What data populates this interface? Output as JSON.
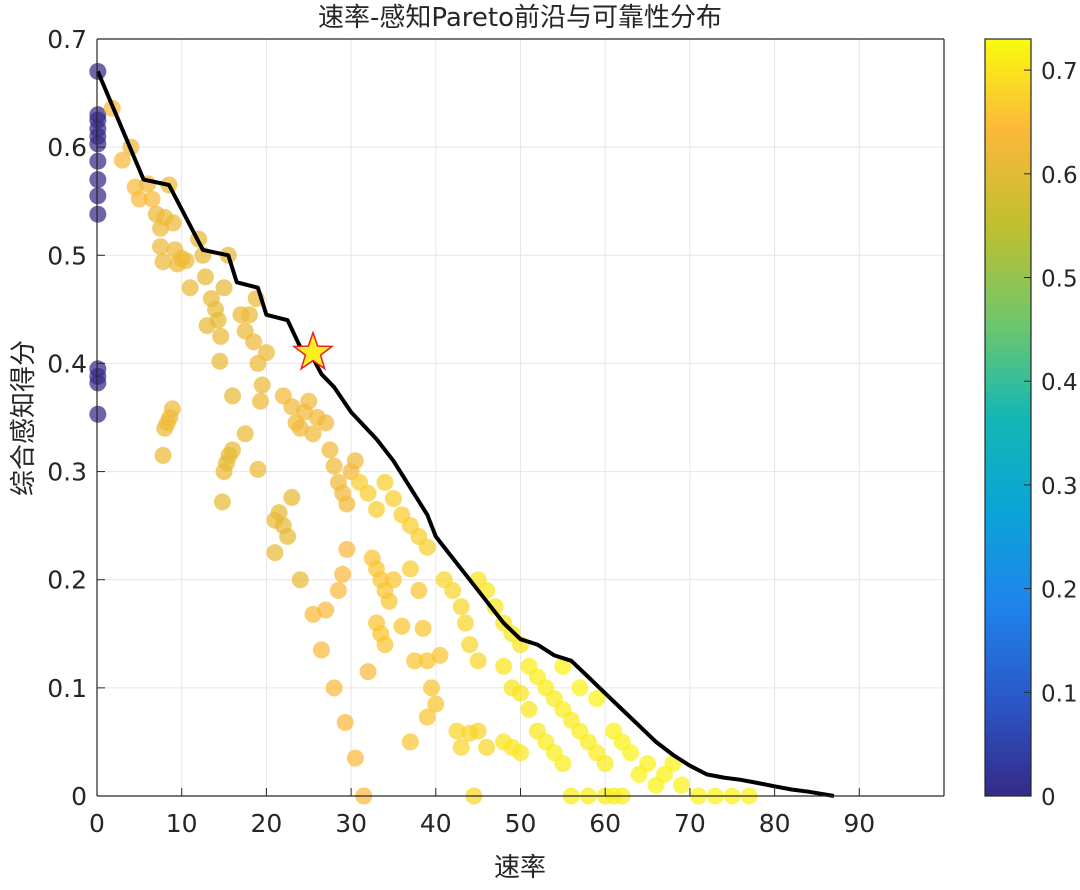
{
  "chart_data": {
    "type": "scatter",
    "title": "速率-感知Pareto前沿与可靠性分布",
    "xlabel": "速率",
    "ylabel": "综合感知得分",
    "xlim": [
      0,
      100
    ],
    "ylim": [
      0,
      0.7
    ],
    "xticks": [
      0,
      10,
      20,
      30,
      40,
      50,
      60,
      70,
      80,
      90
    ],
    "yticks": [
      0,
      0.1,
      0.2,
      0.3,
      0.4,
      0.5,
      0.6,
      0.7
    ],
    "grid": true,
    "colorbar": {
      "min": 0,
      "max": 0.73,
      "ticks": [
        0,
        0.1,
        0.2,
        0.3,
        0.4,
        0.5,
        0.6,
        0.7
      ],
      "colormap": "parula"
    },
    "series": [
      {
        "type": "scatter",
        "color_value_note": "reliability",
        "points": [
          [
            0.1,
            0.67,
            0.0
          ],
          [
            0.1,
            0.63,
            0.0
          ],
          [
            0.1,
            0.625,
            0.0
          ],
          [
            0.1,
            0.617,
            0.0
          ],
          [
            0.1,
            0.61,
            0.0
          ],
          [
            0.1,
            0.603,
            0.0
          ],
          [
            0.1,
            0.587,
            0.0
          ],
          [
            0.1,
            0.57,
            0.0
          ],
          [
            0.1,
            0.555,
            0.0
          ],
          [
            0.1,
            0.538,
            0.0
          ],
          [
            0.1,
            0.395,
            0.0
          ],
          [
            0.1,
            0.388,
            0.0
          ],
          [
            0.1,
            0.382,
            0.0
          ],
          [
            0.1,
            0.353,
            0.0
          ],
          [
            1.8,
            0.636,
            0.64
          ],
          [
            3.0,
            0.588,
            0.64
          ],
          [
            4.0,
            0.6,
            0.63
          ],
          [
            4.5,
            0.563,
            0.64
          ],
          [
            5.0,
            0.552,
            0.64
          ],
          [
            6.0,
            0.566,
            0.63
          ],
          [
            6.5,
            0.552,
            0.64
          ],
          [
            7.0,
            0.538,
            0.62
          ],
          [
            7.5,
            0.525,
            0.62
          ],
          [
            7.5,
            0.508,
            0.62
          ],
          [
            7.8,
            0.494,
            0.62
          ],
          [
            8.0,
            0.535,
            0.62
          ],
          [
            8.5,
            0.565,
            0.62
          ],
          [
            9.0,
            0.53,
            0.62
          ],
          [
            9.2,
            0.505,
            0.62
          ],
          [
            9.5,
            0.492,
            0.62
          ],
          [
            10.0,
            0.497,
            0.62
          ],
          [
            10.5,
            0.495,
            0.62
          ],
          [
            11.0,
            0.47,
            0.62
          ],
          [
            8.0,
            0.34,
            0.62
          ],
          [
            8.3,
            0.345,
            0.62
          ],
          [
            8.6,
            0.35,
            0.62
          ],
          [
            8.9,
            0.358,
            0.62
          ],
          [
            7.8,
            0.315,
            0.62
          ],
          [
            12.0,
            0.515,
            0.61
          ],
          [
            12.5,
            0.5,
            0.61
          ],
          [
            12.8,
            0.48,
            0.61
          ],
          [
            13.0,
            0.435,
            0.61
          ],
          [
            13.5,
            0.46,
            0.61
          ],
          [
            14.0,
            0.45,
            0.61
          ],
          [
            14.3,
            0.44,
            0.61
          ],
          [
            14.6,
            0.425,
            0.61
          ],
          [
            14.5,
            0.402,
            0.61
          ],
          [
            15.0,
            0.47,
            0.61
          ],
          [
            15.5,
            0.5,
            0.61
          ],
          [
            15.0,
            0.3,
            0.61
          ],
          [
            15.3,
            0.308,
            0.61
          ],
          [
            15.6,
            0.315,
            0.61
          ],
          [
            16.0,
            0.32,
            0.61
          ],
          [
            14.8,
            0.272,
            0.61
          ],
          [
            16.0,
            0.37,
            0.61
          ],
          [
            17.0,
            0.445,
            0.62
          ],
          [
            17.5,
            0.43,
            0.62
          ],
          [
            18.0,
            0.445,
            0.62
          ],
          [
            18.5,
            0.42,
            0.62
          ],
          [
            19.0,
            0.4,
            0.62
          ],
          [
            19.5,
            0.38,
            0.62
          ],
          [
            18.8,
            0.46,
            0.62
          ],
          [
            19.3,
            0.365,
            0.62
          ],
          [
            17.5,
            0.335,
            0.62
          ],
          [
            19.0,
            0.302,
            0.62
          ],
          [
            20.0,
            0.41,
            0.62
          ],
          [
            21.0,
            0.255,
            0.61
          ],
          [
            21.5,
            0.262,
            0.61
          ],
          [
            22.0,
            0.25,
            0.61
          ],
          [
            22.5,
            0.24,
            0.61
          ],
          [
            23.0,
            0.276,
            0.61
          ],
          [
            21.0,
            0.225,
            0.61
          ],
          [
            24.0,
            0.2,
            0.61
          ],
          [
            22.0,
            0.37,
            0.63
          ],
          [
            23.0,
            0.36,
            0.63
          ],
          [
            23.5,
            0.345,
            0.63
          ],
          [
            24.0,
            0.34,
            0.63
          ],
          [
            24.5,
            0.355,
            0.63
          ],
          [
            25.0,
            0.365,
            0.63
          ],
          [
            25.5,
            0.335,
            0.63
          ],
          [
            26.0,
            0.35,
            0.63
          ],
          [
            27.0,
            0.345,
            0.63
          ],
          [
            27.5,
            0.32,
            0.63
          ],
          [
            28.0,
            0.305,
            0.63
          ],
          [
            28.5,
            0.29,
            0.63
          ],
          [
            29.0,
            0.28,
            0.63
          ],
          [
            29.5,
            0.27,
            0.63
          ],
          [
            30.0,
            0.3,
            0.63
          ],
          [
            30.5,
            0.31,
            0.63
          ],
          [
            25.5,
            0.168,
            0.64
          ],
          [
            26.5,
            0.135,
            0.64
          ],
          [
            27.0,
            0.172,
            0.64
          ],
          [
            28.0,
            0.1,
            0.64
          ],
          [
            28.5,
            0.19,
            0.64
          ],
          [
            29.0,
            0.205,
            0.64
          ],
          [
            29.5,
            0.228,
            0.64
          ],
          [
            29.3,
            0.068,
            0.64
          ],
          [
            30.5,
            0.035,
            0.64
          ],
          [
            31.5,
            0.0,
            0.64
          ],
          [
            32.0,
            0.115,
            0.64
          ],
          [
            32.5,
            0.22,
            0.66
          ],
          [
            33.0,
            0.21,
            0.66
          ],
          [
            33.5,
            0.2,
            0.66
          ],
          [
            34.0,
            0.19,
            0.66
          ],
          [
            34.5,
            0.18,
            0.66
          ],
          [
            33.0,
            0.16,
            0.66
          ],
          [
            33.5,
            0.15,
            0.66
          ],
          [
            34.0,
            0.14,
            0.66
          ],
          [
            35.0,
            0.2,
            0.66
          ],
          [
            36.0,
            0.157,
            0.66
          ],
          [
            37.0,
            0.05,
            0.66
          ],
          [
            37.5,
            0.125,
            0.66
          ],
          [
            38.0,
            0.19,
            0.66
          ],
          [
            38.5,
            0.155,
            0.66
          ],
          [
            39.0,
            0.125,
            0.66
          ],
          [
            39.5,
            0.1,
            0.66
          ],
          [
            40.0,
            0.085,
            0.66
          ],
          [
            39.0,
            0.073,
            0.66
          ],
          [
            40.5,
            0.13,
            0.66
          ],
          [
            31.0,
            0.29,
            0.67
          ],
          [
            32.0,
            0.28,
            0.67
          ],
          [
            33.0,
            0.265,
            0.67
          ],
          [
            34.0,
            0.29,
            0.67
          ],
          [
            35.0,
            0.275,
            0.67
          ],
          [
            36.0,
            0.26,
            0.67
          ],
          [
            37.0,
            0.25,
            0.67
          ],
          [
            38.0,
            0.24,
            0.67
          ],
          [
            39.0,
            0.23,
            0.67
          ],
          [
            37.0,
            0.21,
            0.67
          ],
          [
            41.0,
            0.2,
            0.68
          ],
          [
            42.0,
            0.19,
            0.68
          ],
          [
            43.0,
            0.175,
            0.68
          ],
          [
            43.5,
            0.16,
            0.68
          ],
          [
            44.0,
            0.14,
            0.68
          ],
          [
            45.0,
            0.125,
            0.68
          ],
          [
            42.5,
            0.06,
            0.68
          ],
          [
            43.0,
            0.045,
            0.68
          ],
          [
            44.0,
            0.058,
            0.68
          ],
          [
            45.0,
            0.06,
            0.68
          ],
          [
            44.5,
            0.0,
            0.68
          ],
          [
            46.0,
            0.045,
            0.68
          ],
          [
            45.0,
            0.2,
            0.7
          ],
          [
            46.0,
            0.19,
            0.7
          ],
          [
            47.0,
            0.175,
            0.7
          ],
          [
            48.0,
            0.16,
            0.7
          ],
          [
            49.0,
            0.15,
            0.7
          ],
          [
            50.0,
            0.14,
            0.7
          ],
          [
            48.0,
            0.12,
            0.7
          ],
          [
            49.0,
            0.1,
            0.7
          ],
          [
            50.0,
            0.095,
            0.7
          ],
          [
            51.0,
            0.08,
            0.7
          ],
          [
            52.0,
            0.06,
            0.7
          ],
          [
            48.0,
            0.05,
            0.7
          ],
          [
            49.0,
            0.045,
            0.7
          ],
          [
            50.0,
            0.04,
            0.7
          ],
          [
            51.0,
            0.12,
            0.71
          ],
          [
            52.0,
            0.11,
            0.71
          ],
          [
            53.0,
            0.1,
            0.71
          ],
          [
            54.0,
            0.09,
            0.71
          ],
          [
            55.0,
            0.08,
            0.71
          ],
          [
            56.0,
            0.07,
            0.71
          ],
          [
            57.0,
            0.06,
            0.71
          ],
          [
            58.0,
            0.05,
            0.71
          ],
          [
            59.0,
            0.04,
            0.71
          ],
          [
            60.0,
            0.03,
            0.71
          ],
          [
            53.0,
            0.05,
            0.71
          ],
          [
            54.0,
            0.04,
            0.71
          ],
          [
            55.0,
            0.03,
            0.71
          ],
          [
            56.0,
            0.0,
            0.71
          ],
          [
            58.0,
            0.0,
            0.71
          ],
          [
            60.0,
            0.0,
            0.71
          ],
          [
            61.0,
            0.0,
            0.71
          ],
          [
            62.0,
            0.0,
            0.71
          ],
          [
            55.0,
            0.12,
            0.72
          ],
          [
            57.0,
            0.1,
            0.72
          ],
          [
            59.0,
            0.09,
            0.72
          ],
          [
            61.0,
            0.06,
            0.72
          ],
          [
            62.0,
            0.05,
            0.72
          ],
          [
            63.0,
            0.04,
            0.72
          ],
          [
            65.0,
            0.03,
            0.72
          ],
          [
            67.0,
            0.02,
            0.72
          ],
          [
            69.0,
            0.01,
            0.72
          ],
          [
            71.0,
            0.0,
            0.72
          ],
          [
            73.0,
            0.0,
            0.72
          ],
          [
            75.0,
            0.0,
            0.72
          ],
          [
            77.0,
            0.0,
            0.72
          ],
          [
            64.0,
            0.02,
            0.72
          ],
          [
            66.0,
            0.01,
            0.72
          ],
          [
            68.0,
            0.03,
            0.72
          ]
        ]
      }
    ],
    "pareto_front": {
      "x": [
        0.1,
        5.5,
        8.5,
        12.5,
        15.5,
        16.5,
        19.0,
        20.0,
        22.5,
        24.0,
        25.5,
        26.5,
        28.0,
        30.0,
        33.0,
        35.0,
        37.0,
        39.0,
        40.0,
        42.0,
        44.0,
        46.0,
        48.0,
        50.0,
        52.0,
        54.0,
        56.0,
        58.0,
        60.0,
        62.0,
        64.0,
        66.0,
        68.0,
        70.0,
        72.0,
        74.0,
        76.0,
        78.0,
        80.0,
        82.0,
        84.0,
        87.0
      ],
      "y": [
        0.67,
        0.57,
        0.565,
        0.505,
        0.5,
        0.475,
        0.47,
        0.445,
        0.44,
        0.415,
        0.405,
        0.39,
        0.378,
        0.355,
        0.33,
        0.31,
        0.285,
        0.26,
        0.24,
        0.22,
        0.2,
        0.18,
        0.16,
        0.145,
        0.14,
        0.13,
        0.125,
        0.11,
        0.095,
        0.08,
        0.065,
        0.05,
        0.038,
        0.028,
        0.02,
        0.017,
        0.015,
        0.012,
        0.009,
        0.006,
        0.004,
        0.0
      ]
    },
    "highlight": {
      "x": 25.5,
      "y": 0.41,
      "marker": "star"
    }
  },
  "colors": {
    "pareto_line": "#000000",
    "star_fill": "#ffee22",
    "star_stroke": "#e32222",
    "grid": "#e6e6e6",
    "axis": "#262626"
  }
}
